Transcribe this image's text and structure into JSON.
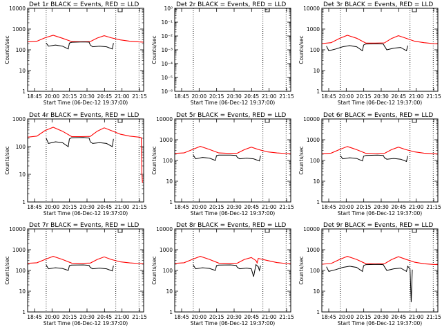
{
  "figure": {
    "x_ticks": [
      "18:45",
      "20:00",
      "20:15",
      "20:30",
      "20:45",
      "21:00",
      "21:15"
    ],
    "y_ticks_counts": [
      "1",
      "10",
      "100",
      "1000",
      "10000"
    ],
    "y_ticks_tiny": [
      "10⁻⁶",
      "10⁻⁵",
      "10⁻⁴",
      "10⁻³",
      "10⁻²",
      "10⁻¹",
      "10⁰"
    ],
    "colors": {
      "events": "#000000",
      "lld": "#ff0000",
      "axis": "#000000"
    }
  },
  "chart_data": [
    {
      "type": "line",
      "panel": 0,
      "title": "Det 1r BLACK = Events, RED = LLD",
      "xlabel": "Start Time (06-Dec-12 19:37:00)",
      "ylabel": "Counts/sec",
      "scale": "log",
      "ylim": [
        1,
        10000
      ],
      "xlim": [
        0,
        100
      ],
      "vlines": [
        16,
        76,
        96
      ],
      "series": [
        {
          "name": "LLD",
          "color": "#ff0000",
          "x": [
            0,
            8,
            15,
            22,
            30,
            38,
            46,
            54,
            60,
            66,
            72,
            80,
            88,
            96,
            100
          ],
          "y": [
            240,
            260,
            380,
            500,
            360,
            250,
            245,
            250,
            370,
            480,
            380,
            300,
            260,
            240,
            235
          ]
        },
        {
          "name": "Events",
          "color": "#000000",
          "x": [
            16,
            18,
            24,
            30,
            35,
            36,
            38,
            48,
            53,
            54,
            56,
            62,
            68,
            73,
            74
          ],
          "y": [
            210,
            150,
            170,
            150,
            110,
            210,
            230,
            240,
            235,
            170,
            140,
            150,
            140,
            110,
            210
          ]
        }
      ]
    },
    {
      "type": "line",
      "panel": 1,
      "title": "Det 2r BLACK = Events, RED = LLD",
      "xlabel": "Start Time (06-Dec-12 19:37:00)",
      "ylabel": "Counts/sec",
      "scale": "log",
      "ylim": [
        1e-06,
        1
      ],
      "xlim": [
        0,
        100
      ],
      "vlines": [
        16,
        76,
        96
      ],
      "series": [
        {
          "name": "Events",
          "color": "#000000",
          "x": [
            0,
            2
          ],
          "y": [
            0.8,
            0.8
          ]
        },
        {
          "name": "Events",
          "color": "#000000",
          "x": [
            78,
            80
          ],
          "y": [
            0.8,
            0.8
          ]
        }
      ]
    },
    {
      "type": "line",
      "panel": 2,
      "title": "Det 3r BLACK = Events, RED = LLD",
      "xlabel": "Start Time (06-Dec-12 19:37:00)",
      "ylabel": "Counts/sec",
      "scale": "log",
      "ylim": [
        1,
        10000
      ],
      "xlim": [
        0,
        100
      ],
      "vlines": [
        16,
        76,
        96
      ],
      "series": [
        {
          "name": "LLD",
          "color": "#ff0000",
          "x": [
            0,
            8,
            15,
            22,
            30,
            38,
            46,
            54,
            60,
            66,
            72,
            80,
            88,
            96,
            100
          ],
          "y": [
            200,
            220,
            350,
            500,
            360,
            210,
            210,
            215,
            350,
            480,
            370,
            260,
            220,
            200,
            195
          ]
        },
        {
          "name": "Events",
          "color": "#000000",
          "x": [
            4,
            6,
            12,
            18,
            24,
            30,
            35,
            36,
            38,
            48,
            53,
            54,
            56,
            62,
            68,
            73,
            74
          ],
          "y": [
            150,
            90,
            110,
            140,
            160,
            140,
            90,
            170,
            190,
            195,
            190,
            150,
            100,
            120,
            130,
            90,
            160
          ]
        }
      ]
    },
    {
      "type": "line",
      "panel": 3,
      "title": "Det 4r BLACK = Events, RED = LLD",
      "xlabel": "Start Time (06-Dec-12 19:37:00)",
      "ylabel": "Counts/sec",
      "scale": "log",
      "ylim": [
        1,
        1000
      ],
      "xlim": [
        0,
        100
      ],
      "vlines": [
        16,
        76,
        96
      ],
      "series": [
        {
          "name": "LLD",
          "color": "#ff0000",
          "x": [
            0,
            8,
            15,
            22,
            30,
            38,
            46,
            54,
            60,
            66,
            72,
            80,
            88,
            96,
            98,
            98.5,
            99
          ],
          "y": [
            220,
            240,
            380,
            500,
            360,
            230,
            230,
            235,
            360,
            480,
            380,
            280,
            240,
            220,
            210,
            10,
            5
          ]
        },
        {
          "name": "Events",
          "color": "#000000",
          "x": [
            16,
            18,
            24,
            30,
            35,
            36,
            38,
            48,
            53,
            54,
            56,
            62,
            68,
            73,
            74
          ],
          "y": [
            200,
            130,
            150,
            140,
            100,
            190,
            210,
            215,
            205,
            150,
            130,
            140,
            130,
            100,
            190
          ]
        }
      ]
    },
    {
      "type": "line",
      "panel": 4,
      "title": "Det 5r BLACK = Events, RED = LLD",
      "xlabel": "Start Time (06-Dec-12 19:37:00)",
      "ylabel": "Counts/sec",
      "scale": "log",
      "ylim": [
        1,
        10000
      ],
      "xlim": [
        0,
        100
      ],
      "vlines": [
        16,
        76,
        96
      ],
      "series": [
        {
          "name": "LLD",
          "color": "#ff0000",
          "x": [
            0,
            8,
            15,
            22,
            30,
            38,
            46,
            54,
            60,
            66,
            72,
            80,
            88,
            96,
            100
          ],
          "y": [
            220,
            230,
            330,
            480,
            340,
            230,
            220,
            225,
            330,
            440,
            340,
            260,
            230,
            215,
            210
          ]
        },
        {
          "name": "Events",
          "color": "#000000",
          "x": [
            16,
            18,
            24,
            30,
            35,
            36,
            38,
            48,
            53,
            54,
            56,
            62,
            68,
            73,
            74
          ],
          "y": [
            180,
            120,
            140,
            130,
            100,
            170,
            180,
            180,
            175,
            140,
            120,
            130,
            120,
            95,
            170
          ]
        }
      ]
    },
    {
      "type": "line",
      "panel": 5,
      "title": "Det 6r BLACK = Events, RED = LLD",
      "xlabel": "Start Time (06-Dec-12 19:37:00)",
      "ylabel": "Counts/sec",
      "scale": "log",
      "ylim": [
        1,
        10000
      ],
      "xlim": [
        0,
        100
      ],
      "vlines": [
        16,
        76,
        96
      ],
      "series": [
        {
          "name": "LLD",
          "color": "#ff0000",
          "x": [
            0,
            8,
            15,
            22,
            30,
            38,
            46,
            54,
            60,
            66,
            72,
            80,
            88,
            96,
            100
          ],
          "y": [
            210,
            225,
            330,
            470,
            330,
            220,
            215,
            220,
            330,
            440,
            340,
            260,
            225,
            210,
            205
          ]
        },
        {
          "name": "Events",
          "color": "#000000",
          "x": [
            16,
            18,
            24,
            30,
            35,
            36,
            38,
            48,
            53,
            54,
            56,
            62,
            68,
            73,
            74
          ],
          "y": [
            170,
            120,
            135,
            125,
            95,
            160,
            175,
            180,
            175,
            135,
            115,
            125,
            115,
            90,
            165
          ]
        }
      ]
    },
    {
      "type": "line",
      "panel": 6,
      "title": "Det 7r BLACK = Events, RED = LLD",
      "xlabel": "Start Time (06-Dec-12 19:37:00)",
      "ylabel": "Counts/sec",
      "scale": "log",
      "ylim": [
        1,
        10000
      ],
      "xlim": [
        0,
        100
      ],
      "vlines": [
        16,
        76,
        96
      ],
      "series": [
        {
          "name": "LLD",
          "color": "#ff0000",
          "x": [
            0,
            8,
            15,
            22,
            30,
            38,
            46,
            54,
            60,
            66,
            72,
            80,
            88,
            96,
            100
          ],
          "y": [
            220,
            235,
            340,
            480,
            340,
            225,
            220,
            225,
            340,
            450,
            340,
            260,
            230,
            215,
            210
          ]
        },
        {
          "name": "Events",
          "color": "#000000",
          "x": [
            16,
            18,
            24,
            30,
            35,
            36,
            38,
            48,
            53,
            54,
            56,
            62,
            68,
            73,
            74
          ],
          "y": [
            180,
            120,
            135,
            125,
            100,
            170,
            180,
            185,
            175,
            140,
            120,
            130,
            120,
            95,
            170
          ]
        }
      ]
    },
    {
      "type": "line",
      "panel": 7,
      "title": "Det 8r BLACK = Events, RED = LLD",
      "xlabel": "Start Time (06-Dec-12 19:37:00)",
      "ylabel": "Counts/sec",
      "scale": "log",
      "ylim": [
        1,
        10000
      ],
      "xlim": [
        0,
        100
      ],
      "vlines": [
        16,
        76,
        96
      ],
      "series": [
        {
          "name": "LLD",
          "color": "#ff0000",
          "x": [
            0,
            8,
            15,
            22,
            30,
            38,
            46,
            54,
            60,
            66,
            70,
            71,
            72,
            80,
            88,
            96,
            100
          ],
          "y": [
            220,
            235,
            340,
            480,
            340,
            225,
            220,
            225,
            340,
            420,
            300,
            230,
            380,
            300,
            240,
            215,
            210
          ]
        },
        {
          "name": "Events",
          "color": "#000000",
          "x": [
            16,
            18,
            24,
            30,
            35,
            36,
            38,
            48,
            53,
            54,
            56,
            62,
            66,
            68,
            70,
            72,
            73,
            74
          ],
          "y": [
            180,
            120,
            135,
            125,
            100,
            170,
            180,
            185,
            175,
            140,
            120,
            130,
            120,
            50,
            190,
            150,
            100,
            170
          ]
        }
      ]
    },
    {
      "type": "line",
      "panel": 8,
      "title": "Det 9r BLACK = Events, RED = LLD",
      "xlabel": "Start Time (06-Dec-12 19:37:00)",
      "ylabel": "Counts/sec",
      "scale": "log",
      "ylim": [
        1,
        10000
      ],
      "xlim": [
        0,
        100
      ],
      "vlines": [
        16,
        76,
        96
      ],
      "series": [
        {
          "name": "LLD",
          "color": "#ff0000",
          "x": [
            0,
            8,
            15,
            22,
            30,
            38,
            46,
            54,
            60,
            66,
            72,
            80,
            88,
            96,
            100
          ],
          "y": [
            200,
            215,
            330,
            480,
            340,
            210,
            205,
            210,
            330,
            460,
            350,
            250,
            210,
            195,
            190
          ]
        },
        {
          "name": "Events",
          "color": "#000000",
          "x": [
            4,
            6,
            12,
            18,
            24,
            30,
            35,
            36,
            38,
            48,
            53,
            54,
            56,
            62,
            68,
            73,
            74,
            76,
            77,
            78
          ],
          "y": [
            150,
            90,
            110,
            140,
            160,
            140,
            90,
            170,
            190,
            195,
            190,
            150,
            100,
            120,
            130,
            90,
            160,
            120,
            3,
            110
          ]
        }
      ]
    }
  ]
}
